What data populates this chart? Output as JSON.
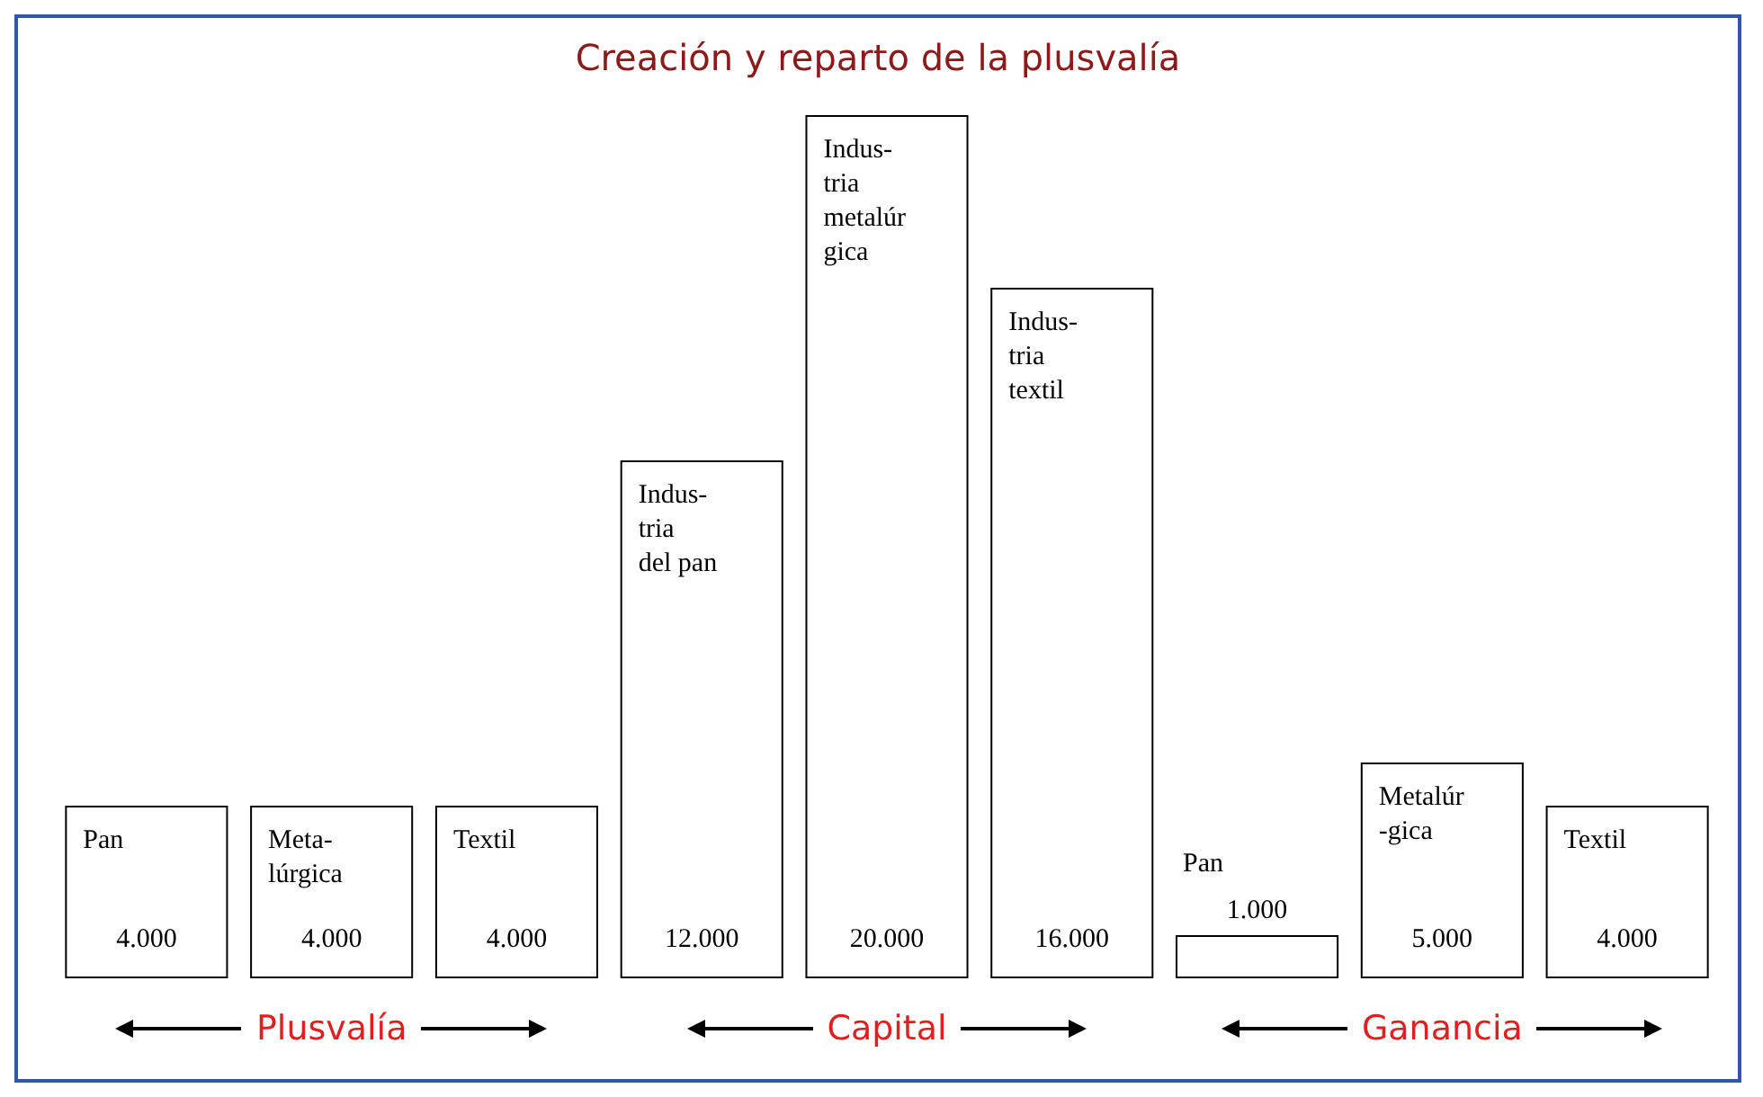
{
  "chart_data": {
    "type": "bar",
    "title": "Creación y reparto de la plusvalía",
    "categories": [
      "Pan",
      "Meta-\nlúrgica",
      "Textil",
      "Indus-\ntria\ndel pan",
      "Indus-\ntria\nmetalúr\ngica",
      "Indus-\ntria\ntextil",
      "Pan",
      "Metalúr\n-gica",
      "Textil"
    ],
    "values": [
      4000,
      4000,
      4000,
      12000,
      20000,
      16000,
      1000,
      5000,
      4000
    ],
    "value_labels": [
      "4.000",
      "4.000",
      "4.000",
      "12.000",
      "20.000",
      "16.000",
      "1.000",
      "5.000",
      "4.000"
    ],
    "color": "#ffffff",
    "annotations": [
      "Plusvalía",
      "Capital",
      "Ganancia"
    ]
  }
}
